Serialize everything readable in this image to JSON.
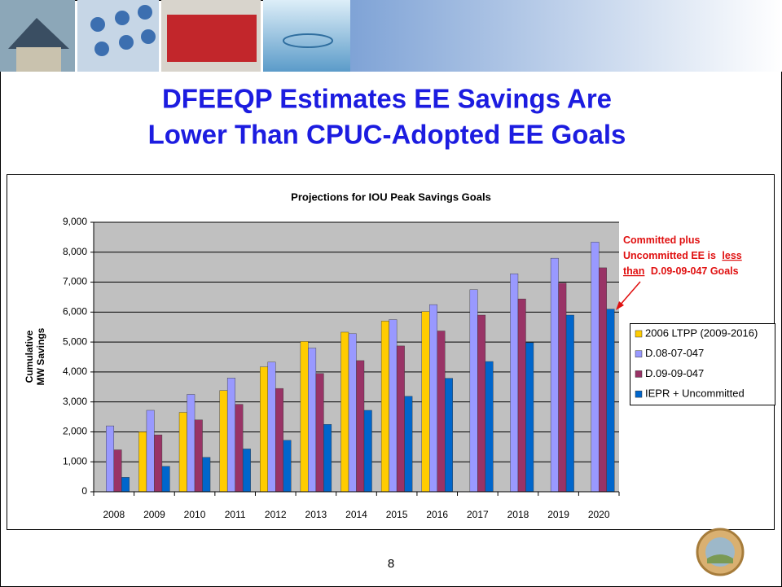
{
  "slide_title_lines": [
    "DFEEQP Estimates EE Savings Are",
    "Lower Than CPUC-Adopted EE Goals"
  ],
  "page_number": "8",
  "chart_data": {
    "type": "bar",
    "title": "Projections for IOU Peak Savings Goals",
    "y_label_lines": [
      "Cumulative",
      "MW Savings"
    ],
    "categories": [
      "2008",
      "2009",
      "2010",
      "2011",
      "2012",
      "2013",
      "2014",
      "2015",
      "2016",
      "2017",
      "2018",
      "2019",
      "2020"
    ],
    "series": [
      {
        "name": "2006 LTPP (2009-2016)",
        "color": "#FFCC00",
        "values": [
          null,
          2000,
          2650,
          3380,
          4170,
          5020,
          5330,
          5700,
          6020,
          null,
          null,
          null,
          null
        ]
      },
      {
        "name": "D.08-07-047",
        "color": "#9999FF",
        "values": [
          2200,
          2720,
          3250,
          3800,
          4330,
          4800,
          5280,
          5750,
          6250,
          6750,
          7280,
          7800,
          8340
        ]
      },
      {
        "name": "D.09-09-047",
        "color": "#993366",
        "values": [
          1400,
          1900,
          2400,
          2920,
          3450,
          3950,
          4380,
          4870,
          5370,
          5900,
          6440,
          6970,
          7480
        ]
      },
      {
        "name": "IEPR + Uncommitted",
        "color": "#0066CC",
        "values": [
          480,
          850,
          1150,
          1430,
          1720,
          2250,
          2720,
          3190,
          3790,
          4350,
          4980,
          5900,
          6100
        ]
      }
    ],
    "ylim": [
      0,
      9000
    ],
    "yticks": [
      0,
      {
        "value": 1000,
        "label": "1,000"
      },
      {
        "value": 2000,
        "label": "2,000"
      },
      {
        "value": 3000,
        "label": "3,000"
      },
      {
        "value": 4000,
        "label": "4,000"
      },
      {
        "value": 5000,
        "label": "5,000"
      },
      {
        "value": 6000,
        "label": "6,000"
      },
      {
        "value": 7000,
        "label": "7,000"
      },
      {
        "value": 8000,
        "label": "8,000"
      },
      {
        "value": 9000,
        "label": "9,000"
      }
    ],
    "grid": true,
    "legend": "right",
    "annotation_parts": [
      "Committed plus",
      "Uncommitted EE is",
      "less",
      "than",
      "D.09-09-047 Goals"
    ]
  }
}
